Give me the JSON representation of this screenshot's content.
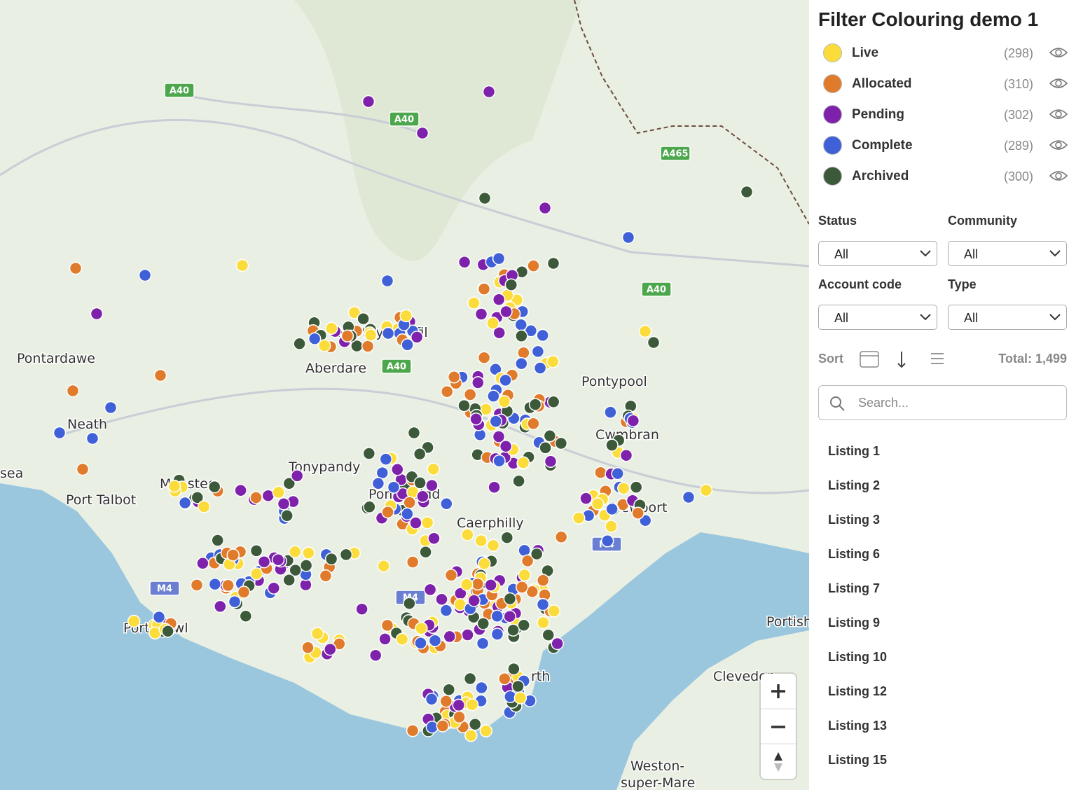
{
  "sidebar": {
    "title": "Filter Colouring demo 1",
    "legend": [
      {
        "name": "Live",
        "count": "(298)",
        "color": "#fbdc3b"
      },
      {
        "name": "Allocated",
        "count": "(310)",
        "color": "#e07b2c"
      },
      {
        "name": "Pending",
        "count": "(302)",
        "color": "#7e22ab"
      },
      {
        "name": "Complete",
        "count": "(289)",
        "color": "#4060d8"
      },
      {
        "name": "Archived",
        "count": "(300)",
        "color": "#3c5a3a"
      }
    ],
    "filters": [
      {
        "label": "Status",
        "value": "All"
      },
      {
        "label": "Community",
        "value": "All"
      },
      {
        "label": "Account code",
        "value": "All"
      },
      {
        "label": "Type",
        "value": "All"
      }
    ],
    "sort_label": "Sort",
    "total": "Total: 1,499",
    "search_placeholder": "Search...",
    "listings": [
      "Listing 1",
      "Listing 2",
      "Listing 3",
      "Listing 6",
      "Listing 7",
      "Listing 9",
      "Listing 10",
      "Listing 12",
      "Listing 13",
      "Listing 15"
    ]
  },
  "map": {
    "places": [
      "Pontardawe",
      "Neath",
      "sea",
      "Port Talbot",
      "Maesteg",
      "Porthcawl",
      "Tonypandy",
      "Pontypridd",
      "Caerphilly",
      "Merthyr Tydfil",
      "Aberdare",
      "Pontypool",
      "Cwmbran",
      "Newport",
      "rth",
      "Portish",
      "Clevedon",
      "Weston-",
      "super-Mare"
    ],
    "roads": [
      "A40",
      "A40",
      "A465",
      "A40",
      "A40",
      "M4",
      "M4",
      "M4"
    ]
  }
}
